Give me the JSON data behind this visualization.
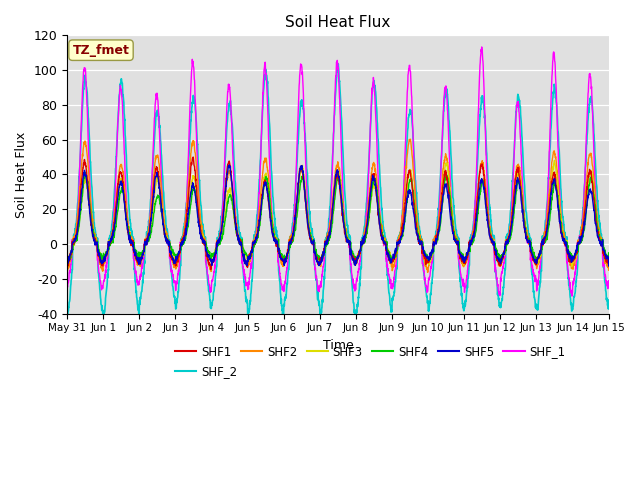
{
  "title": "Soil Heat Flux",
  "ylabel": "Soil Heat Flux",
  "xlabel": "Time",
  "ylim": [
    -40,
    120
  ],
  "xlim_days": [
    0,
    15
  ],
  "background_color": "#e0e0e0",
  "annotation_text": "TZ_fmet",
  "annotation_bg": "#ffffcc",
  "annotation_border": "#999944",
  "annotation_fg": "#880000",
  "series_order": [
    "SHF_2",
    "SHF_1",
    "SHF2",
    "SHF3",
    "SHF4",
    "SHF1",
    "SHF5"
  ],
  "series": {
    "SHF1": {
      "color": "#dd0000",
      "lw": 1.0
    },
    "SHF2": {
      "color": "#ff8800",
      "lw": 1.0
    },
    "SHF3": {
      "color": "#dddd00",
      "lw": 1.0
    },
    "SHF4": {
      "color": "#00cc00",
      "lw": 1.0
    },
    "SHF5": {
      "color": "#0000cc",
      "lw": 1.0
    },
    "SHF_1": {
      "color": "#ff00ff",
      "lw": 1.0
    },
    "SHF_2": {
      "color": "#00cccc",
      "lw": 1.2
    }
  },
  "legend_row1": [
    "SHF1",
    "SHF2",
    "SHF3",
    "SHF4",
    "SHF5",
    "SHF_1"
  ],
  "legend_row2": [
    "SHF_2"
  ],
  "xtick_labels": [
    "May 31",
    "Jun 1",
    "Jun 2",
    "Jun 3",
    "Jun 4",
    "Jun 5",
    "Jun 6",
    "Jun 7",
    "Jun 8",
    "Jun 9",
    "Jun 10",
    "Jun 11",
    "Jun 12",
    "Jun 13",
    "Jun 14",
    "Jun 15"
  ],
  "xtick_positions": [
    0,
    1,
    2,
    3,
    4,
    5,
    6,
    7,
    8,
    9,
    10,
    11,
    12,
    13,
    14,
    15
  ],
  "ytick_positions": [
    -40,
    -20,
    0,
    20,
    40,
    60,
    80,
    100,
    120
  ]
}
